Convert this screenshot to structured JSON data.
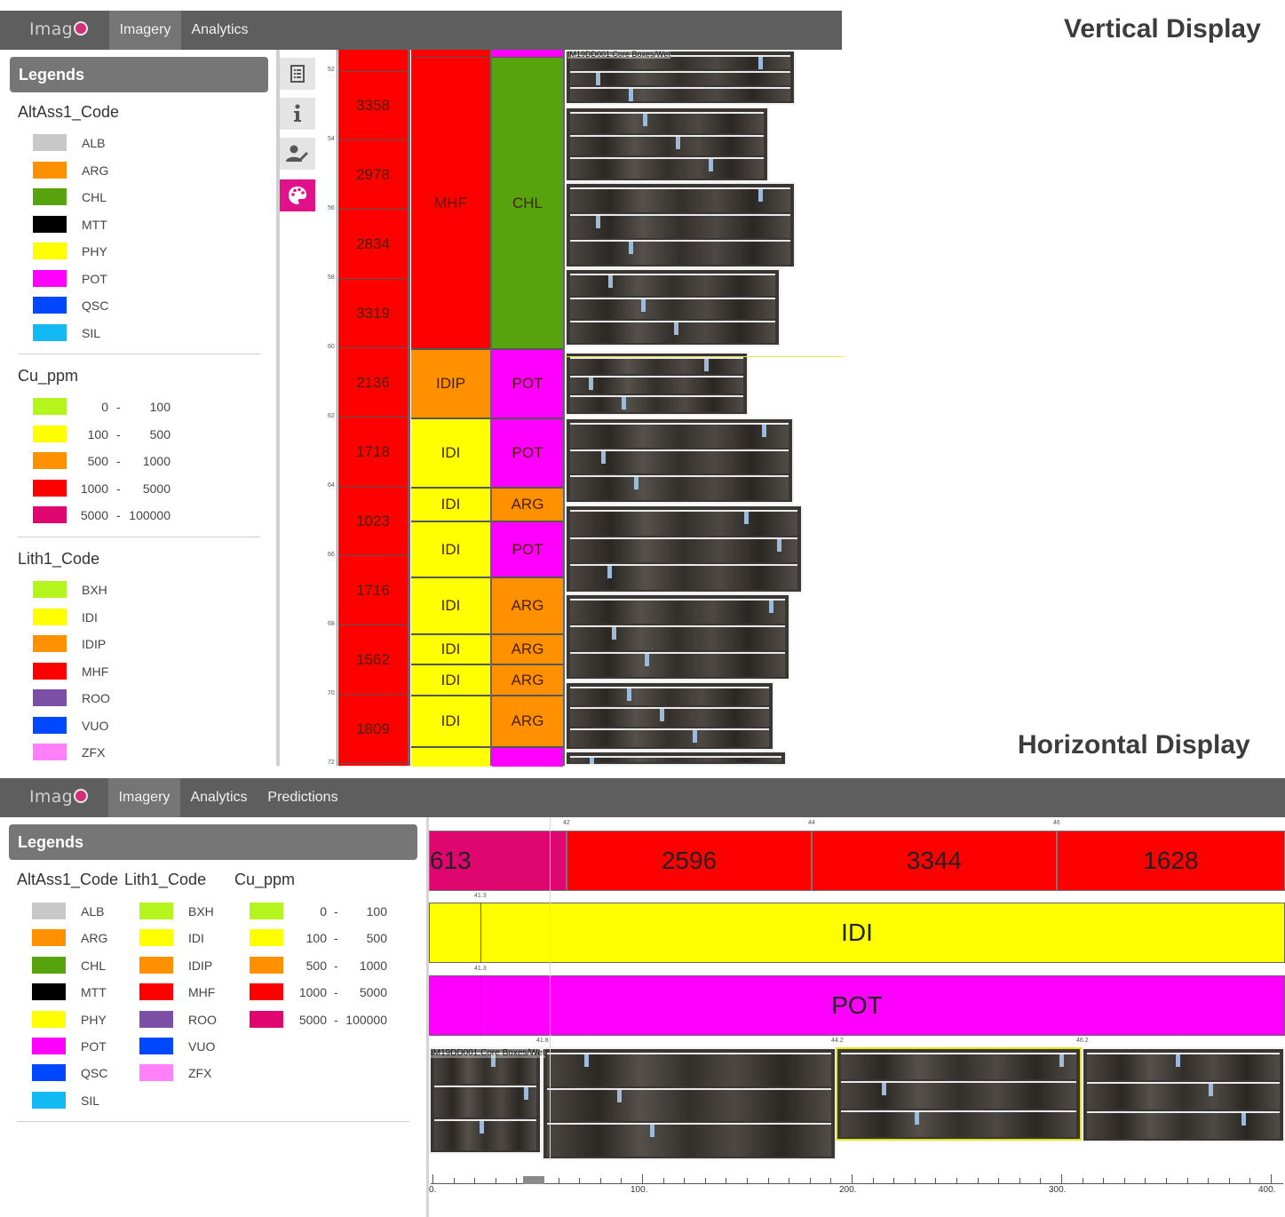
{
  "vertical": {
    "title": "Vertical Display",
    "nav": {
      "logo": "Imag",
      "tabs": [
        "Imagery",
        "Analytics"
      ]
    },
    "legends": {
      "header": "Legends",
      "altass": {
        "title": "AltAss1_Code",
        "items": [
          {
            "label": "ALB",
            "color": "#c8c8c8"
          },
          {
            "label": "ARG",
            "color": "#ff9100"
          },
          {
            "label": "CHL",
            "color": "#57a30e"
          },
          {
            "label": "MTT",
            "color": "#000000"
          },
          {
            "label": "PHY",
            "color": "#ffff00"
          },
          {
            "label": "POT",
            "color": "#ff00ff"
          },
          {
            "label": "QSC",
            "color": "#0048ff"
          },
          {
            "label": "SIL",
            "color": "#13b9f3"
          }
        ]
      },
      "cu": {
        "title": "Cu_ppm",
        "items": [
          {
            "low": "0",
            "dash": "-",
            "high": "100",
            "color": "#b4f51e"
          },
          {
            "low": "100",
            "dash": "-",
            "high": "500",
            "color": "#ffff00"
          },
          {
            "low": "500",
            "dash": "-",
            "high": "1000",
            "color": "#ff9100"
          },
          {
            "low": "1000",
            "dash": "-",
            "high": "5000",
            "color": "#ff0000"
          },
          {
            "low": "5000",
            "dash": "-",
            "high": "100000",
            "color": "#e0066f"
          }
        ]
      },
      "lith": {
        "title": "Lith1_Code",
        "items": [
          {
            "label": "BXH",
            "color": "#b4f51e"
          },
          {
            "label": "IDI",
            "color": "#ffff00"
          },
          {
            "label": "IDIP",
            "color": "#ff9100"
          },
          {
            "label": "MHF",
            "color": "#ff0000"
          },
          {
            "label": "ROO",
            "color": "#7b4fa6"
          },
          {
            "label": "VUO",
            "color": "#0048ff"
          },
          {
            "label": "ZFX",
            "color": "#ff80f8"
          }
        ]
      }
    },
    "tools": [
      "list-icon",
      "info-icon",
      "user-edit-icon",
      "palette-icon"
    ],
    "depth_ticks": [
      "52",
      "54",
      "56",
      "58",
      "60",
      "62",
      "64",
      "66",
      "68",
      "70",
      "72"
    ],
    "cu_cells": [
      "3358",
      "2978",
      "2834",
      "3319",
      "2136",
      "1718",
      "1023",
      "1716",
      "1562",
      "1809"
    ],
    "lith_cells": [
      {
        "label": "MHF",
        "color": "#ff0000"
      },
      {
        "label": "IDIP",
        "color": "#ff9100"
      },
      {
        "label": "IDI",
        "color": "#ffff00"
      },
      {
        "label": "IDI",
        "color": "#ffff00"
      },
      {
        "label": "IDI",
        "color": "#ffff00"
      },
      {
        "label": "IDI",
        "color": "#ffff00"
      },
      {
        "label": "IDI",
        "color": "#ffff00"
      },
      {
        "label": "IDI",
        "color": "#ffff00"
      },
      {
        "label": "IDI",
        "color": "#ffff00"
      }
    ],
    "alt_cells": [
      {
        "label": "CHL",
        "color": "#57a30e"
      },
      {
        "label": "POT",
        "color": "#ff00ff"
      },
      {
        "label": "POT",
        "color": "#ff00ff"
      },
      {
        "label": "ARG",
        "color": "#ff9100"
      },
      {
        "label": "POT",
        "color": "#ff00ff"
      },
      {
        "label": "ARG",
        "color": "#ff9100"
      },
      {
        "label": "ARG",
        "color": "#ff9100"
      },
      {
        "label": "ARG",
        "color": "#ff9100"
      },
      {
        "label": "ARG",
        "color": "#ff9100"
      }
    ],
    "image_label": "IM19DD001:Core Boxes/Wet"
  },
  "horizontal": {
    "title": "Horizontal Display",
    "nav": {
      "logo": "Imag",
      "tabs": [
        "Imagery",
        "Analytics",
        "Predictions"
      ]
    },
    "legends": {
      "header": "Legends"
    },
    "top_ticks": [
      "42",
      "44",
      "46"
    ],
    "cu_cells": [
      "613",
      "2596",
      "3344",
      "1628"
    ],
    "lith_tick": "41.3",
    "lith_label": "IDI",
    "alt_tick": "41.3",
    "alt_label": "POT",
    "image_ticks": [
      "41.8",
      "44.2",
      "46.2"
    ],
    "image_label": "IM19DD001:Core Boxes/Wet",
    "scale_ticks": [
      "0.",
      "100.",
      "200.",
      "300.",
      "400."
    ]
  }
}
